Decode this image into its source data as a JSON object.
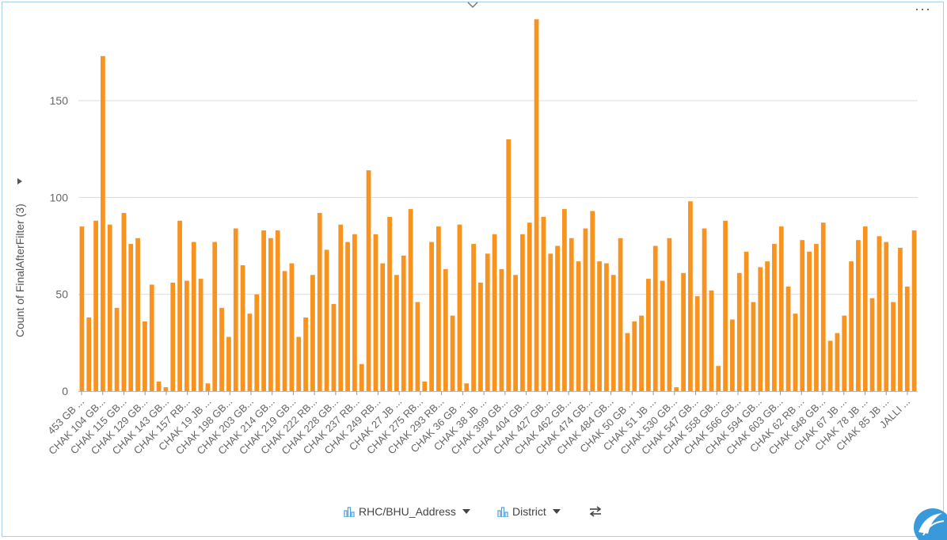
{
  "chart_data": {
    "type": "bar",
    "ylabel": "Count of FinalAfterFilter (3)",
    "ylim": [
      0,
      195
    ],
    "yticks": [
      0,
      50,
      100,
      150
    ],
    "grid": true,
    "bar_color": "#f7931e",
    "values": [
      85,
      38,
      88,
      173,
      86,
      43,
      92,
      76,
      79,
      36,
      55,
      5,
      2,
      56,
      88,
      57,
      77,
      58,
      4,
      77,
      43,
      28,
      84,
      65,
      40,
      50,
      83,
      79,
      83,
      62,
      66,
      28,
      38,
      60,
      92,
      73,
      45,
      86,
      77,
      81,
      14,
      114,
      81,
      66,
      90,
      60,
      70,
      94,
      46,
      5,
      77,
      85,
      63,
      39,
      86,
      4,
      76,
      56,
      71,
      81,
      63,
      130,
      60,
      81,
      87,
      192,
      90,
      71,
      75,
      94,
      79,
      67,
      84,
      93,
      67,
      66,
      60,
      79,
      30,
      36,
      39,
      58,
      75,
      57,
      79,
      2,
      61,
      98,
      49,
      84,
      52,
      13,
      88,
      37,
      61,
      72,
      46,
      64,
      67,
      76,
      85,
      54,
      40,
      78,
      72,
      76,
      87,
      26,
      30,
      39,
      67,
      78,
      85,
      48,
      80,
      77,
      46,
      74,
      54,
      83
    ],
    "tick_labels": [
      "453 GB ...",
      "CHAK 104 GB...",
      "CHAK 115 GB...",
      "CHAK 129 GB...",
      "CHAK 143 GB...",
      "CHAK 157 RB...",
      "CHAK 19 JB ...",
      "CHAK 198 GB...",
      "CHAK 203 GB...",
      "CHAK 214 GB...",
      "CHAK 219 GB...",
      "CHAK 222 RB...",
      "CHAK 228 GB...",
      "CHAK 237 RB...",
      "CHAK 249 RB...",
      "CHAK 27 JB ...",
      "CHAK 275 RB...",
      "CHAK 293 RB...",
      "CHAK 36 GB ...",
      "CHAK 38 JB ...",
      "CHAK 399 GB...",
      "CHAK 404 GB...",
      "CHAK 427 GB...",
      "CHAK 462 GB...",
      "CHAK 474 GB...",
      "CHAK 484 GB...",
      "CHAK 50 GB ...",
      "CHAK 51 JB ...",
      "CHAK 530 GB...",
      "CHAK 547 GB...",
      "CHAK 558 GB...",
      "CHAK 566 GB...",
      "CHAK 594 GB...",
      "CHAK 603 GB...",
      "CHAK 62 RB ...",
      "CHAK 648 GB...",
      "CHAK 67 JB ...",
      "CHAK 78 JB ...",
      "CHAK 85 JB ...",
      "JALLI ..."
    ]
  },
  "footer": {
    "x_field": "RHC/BHU_Address",
    "color_field": "District",
    "x_field_icon": "bar-chart-icon",
    "color_field_icon": "bar-chart-icon",
    "swap_icon": "swap-axes-icon"
  },
  "toolbar": {
    "more_icon": "more-options-icon",
    "more_label": "···",
    "collapse_icon": "chevron-down-icon"
  }
}
